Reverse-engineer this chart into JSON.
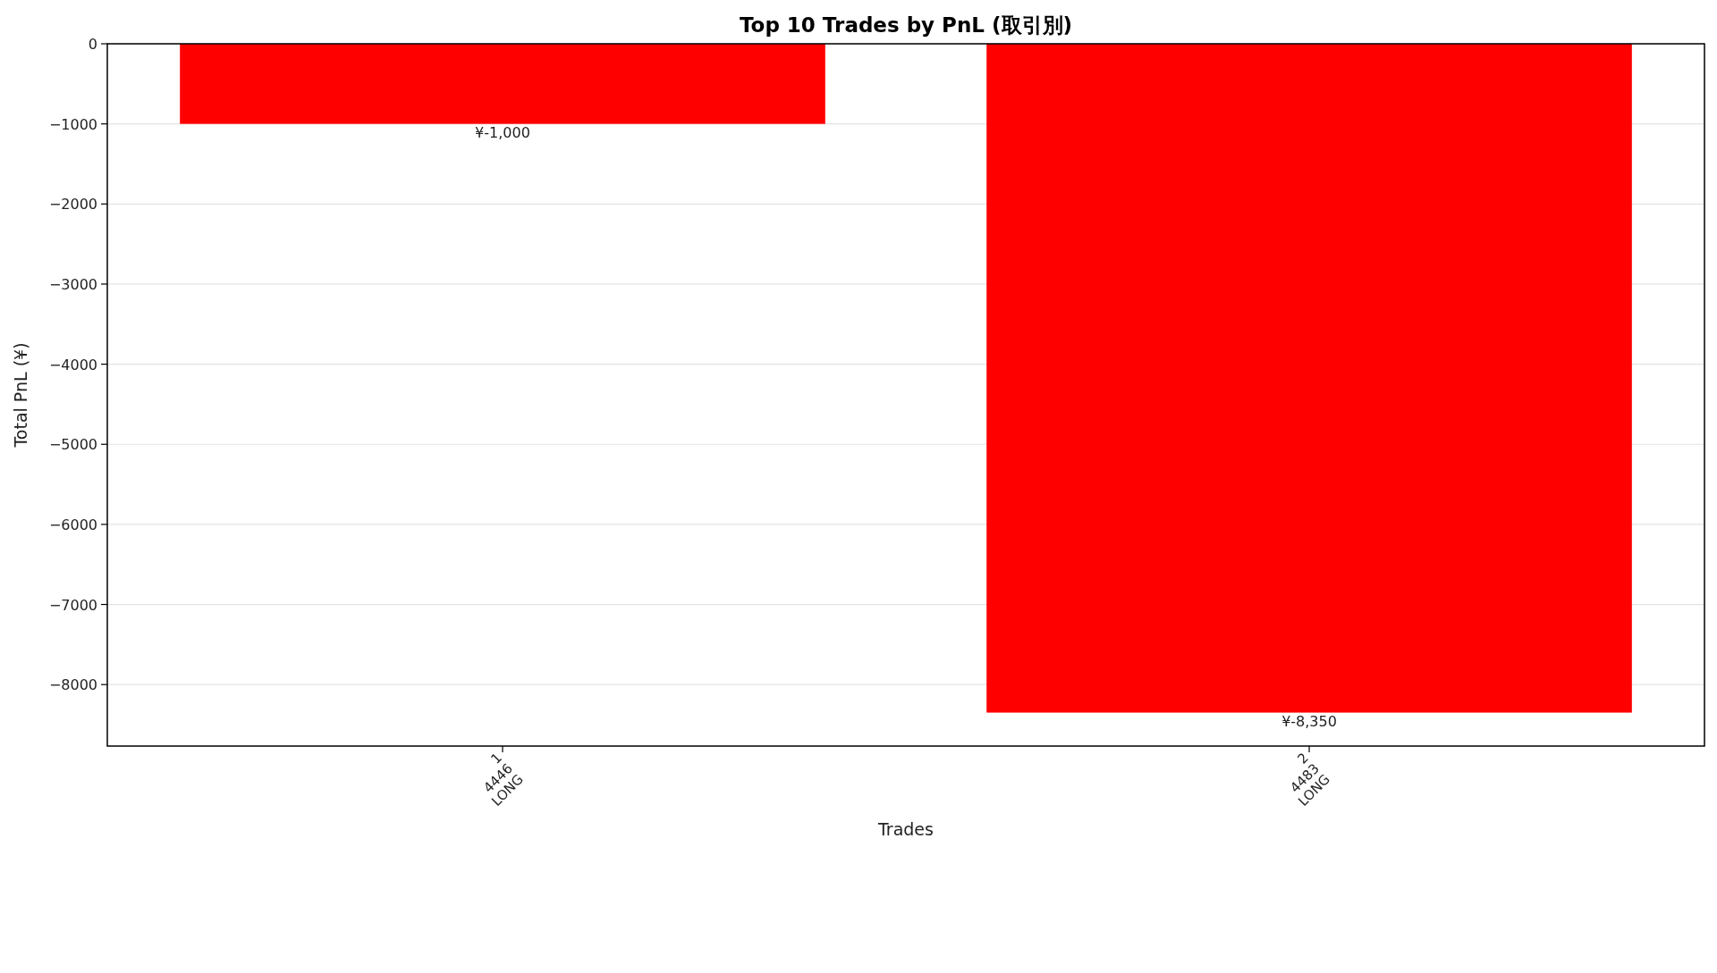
{
  "chart_data": {
    "type": "bar",
    "title": "Top 10 Trades by PnL (取引別)",
    "xlabel": "Trades",
    "ylabel": "Total PnL (¥)",
    "categories": [
      "1\n4446\nLONG",
      "2\n4483\nLONG"
    ],
    "values": [
      -1000,
      -8350
    ],
    "value_labels": [
      "¥-1,000",
      "¥-8,350"
    ],
    "color": "#ff0000",
    "ylim": [
      -8767.5,
      0
    ],
    "yticks": [
      0,
      -1000,
      -2000,
      -3000,
      -4000,
      -5000,
      -6000,
      -7000,
      -8000
    ],
    "grid": "y"
  }
}
